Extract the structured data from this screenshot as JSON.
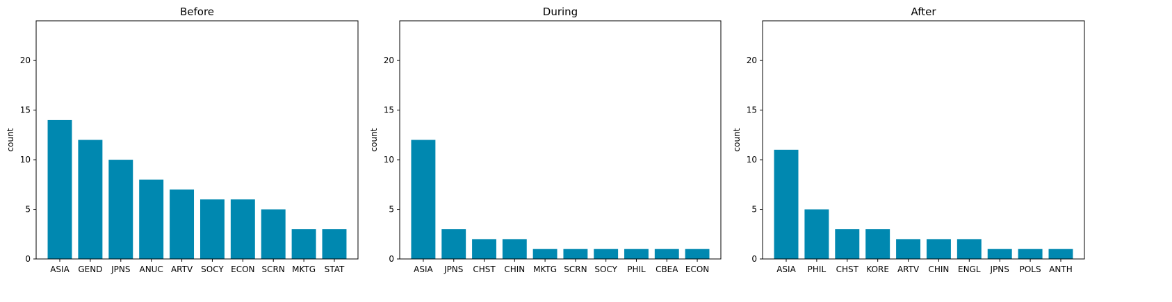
{
  "chart_data": [
    {
      "type": "bar",
      "title": "Before",
      "xlabel": "",
      "ylabel": "count",
      "ylim": [
        0,
        24
      ],
      "yticks": [
        0,
        5,
        10,
        15,
        20
      ],
      "categories": [
        "ASIA",
        "GEND",
        "JPNS",
        "ANUC",
        "ARTV",
        "SOCY",
        "ECON",
        "SCRN",
        "MKTG",
        "STAT"
      ],
      "values": [
        14,
        12,
        10,
        8,
        7,
        6,
        6,
        5,
        3,
        3
      ],
      "color": "#0088b0",
      "grid": false
    },
    {
      "type": "bar",
      "title": "During",
      "xlabel": "",
      "ylabel": "count",
      "ylim": [
        0,
        24
      ],
      "yticks": [
        0,
        5,
        10,
        15,
        20
      ],
      "categories": [
        "ASIA",
        "JPNS",
        "CHST",
        "CHIN",
        "MKTG",
        "SCRN",
        "SOCY",
        "PHIL",
        "CBEA",
        "ECON"
      ],
      "values": [
        12,
        3,
        2,
        2,
        1,
        1,
        1,
        1,
        1,
        1
      ],
      "color": "#0088b0",
      "grid": false
    },
    {
      "type": "bar",
      "title": "After",
      "xlabel": "",
      "ylabel": "count",
      "ylim": [
        0,
        24
      ],
      "yticks": [
        0,
        5,
        10,
        15,
        20
      ],
      "categories": [
        "ASIA",
        "PHIL",
        "CHST",
        "KORE",
        "ARTV",
        "CHIN",
        "ENGL",
        "JPNS",
        "POLS",
        "ANTH"
      ],
      "values": [
        11,
        5,
        3,
        3,
        2,
        2,
        2,
        1,
        1,
        1
      ],
      "color": "#0088b0",
      "grid": false
    }
  ]
}
